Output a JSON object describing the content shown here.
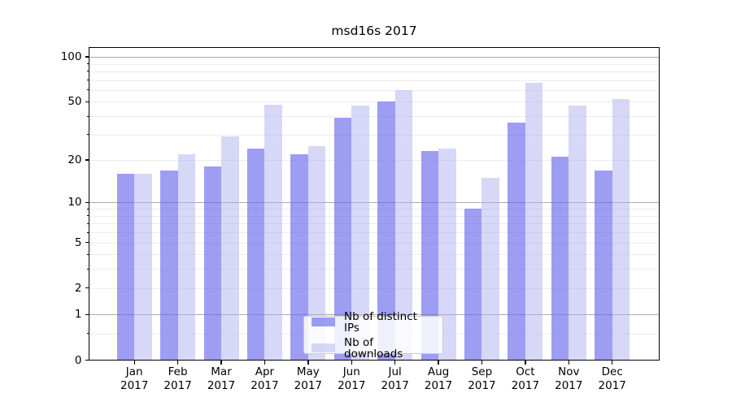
{
  "title": "msd16s 2017",
  "chart_data": {
    "type": "bar",
    "title": "msd16s 2017",
    "x_categories": [
      "Jan",
      "Feb",
      "Mar",
      "Apr",
      "May",
      "Jun",
      "Jul",
      "Aug",
      "Sep",
      "Oct",
      "Nov",
      "Dec"
    ],
    "x_year": "2017",
    "series": [
      {
        "name": "Nb of distinct IPs",
        "color": "rgba(105,105,235,0.65)",
        "values": [
          16,
          17,
          18,
          24,
          22,
          39,
          50,
          23,
          9,
          36,
          21,
          17
        ]
      },
      {
        "name": "Nb of downloads",
        "color": "rgba(175,175,240,0.5)",
        "values": [
          16,
          22,
          29,
          48,
          25,
          47,
          60,
          24,
          15,
          67,
          47,
          52
        ]
      }
    ],
    "y_scale": "log10(value+1)",
    "ylim": [
      0,
      114
    ],
    "y_tick_labels": [
      "100",
      "50",
      "20",
      "10",
      "5",
      "2",
      "1",
      "0"
    ],
    "y_tick_values": [
      100,
      50,
      20,
      10,
      5,
      2,
      1,
      0
    ],
    "y_major_gridlines": [
      1,
      10,
      100
    ],
    "y_minor_gridlines": [
      0.5,
      2,
      3,
      4,
      5,
      6,
      7,
      8,
      9,
      20,
      30,
      40,
      50,
      60,
      70,
      80,
      90
    ],
    "grid": true,
    "legend_position": "lower center",
    "colors": {
      "major_grid": "#ababab",
      "minor_grid": "#ececec",
      "spine": "#000000",
      "text": "#000000",
      "background": "#ffffff"
    }
  }
}
